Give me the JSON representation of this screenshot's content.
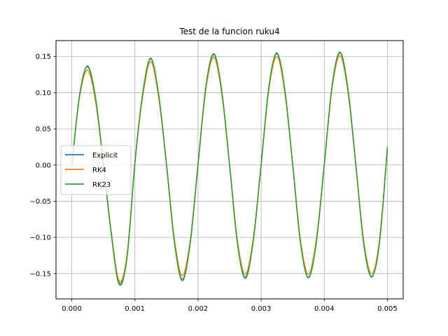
{
  "chart_data": {
    "type": "line",
    "title": "Test de la funcion ruku4",
    "xlabel": "",
    "ylabel": "",
    "xlim": [
      -0.00025,
      0.00525
    ],
    "ylim": [
      -0.185,
      0.172
    ],
    "x_ticks": [
      "0.000",
      "0.001",
      "0.002",
      "0.003",
      "0.004",
      "0.005"
    ],
    "y_ticks": [
      "−0.15",
      "−0.10",
      "−0.05",
      "0.00",
      "0.05",
      "0.10",
      "0.15"
    ],
    "grid": true,
    "legend_position": "center-left",
    "x": [
      0,
      0.000125,
      0.00025,
      0.000375,
      0.0005,
      0.000625,
      0.00075,
      0.000875,
      0.001,
      0.001125,
      0.00125,
      0.001375,
      0.0015,
      0.001625,
      0.00175,
      0.001875,
      0.002,
      0.002125,
      0.00225,
      0.002375,
      0.0025,
      0.002625,
      0.00275,
      0.002875,
      0.003,
      0.003125,
      0.00325,
      0.003375,
      0.0035,
      0.003625,
      0.00375,
      0.003875,
      0.004,
      0.004125,
      0.00425,
      0.004375,
      0.0045,
      0.004625,
      0.00475,
      0.004875,
      0.005
    ],
    "series": [
      {
        "name": "Explicit",
        "color": "#1f77b4",
        "values": [
          0.0,
          0.097,
          0.136,
          0.093,
          0.002,
          -0.094,
          -0.163,
          -0.127,
          0.003,
          0.099,
          0.147,
          0.097,
          0.001,
          -0.105,
          -0.158,
          -0.108,
          0.001,
          0.108,
          0.153,
          0.102,
          0.0,
          -0.108,
          -0.155,
          -0.104,
          0.001,
          0.109,
          0.154,
          0.103,
          0.0,
          -0.108,
          -0.155,
          -0.105,
          0.001,
          0.11,
          0.155,
          0.104,
          0.0,
          -0.108,
          -0.154,
          -0.106,
          0.025
        ]
      },
      {
        "name": "RK4",
        "color": "#ff7f0e",
        "values": [
          0.0,
          0.095,
          0.131,
          0.089,
          0.002,
          -0.092,
          -0.16,
          -0.124,
          0.003,
          0.096,
          0.143,
          0.094,
          0.001,
          -0.102,
          -0.153,
          -0.105,
          0.001,
          0.105,
          0.149,
          0.099,
          0.0,
          -0.105,
          -0.151,
          -0.101,
          0.001,
          0.106,
          0.15,
          0.1,
          0.0,
          -0.105,
          -0.151,
          -0.102,
          0.001,
          0.107,
          0.151,
          0.101,
          0.0,
          -0.105,
          -0.15,
          -0.103,
          0.025
        ]
      },
      {
        "name": "RK23",
        "color": "#2ca02c",
        "values": [
          0.0,
          0.097,
          0.137,
          0.094,
          0.002,
          -0.095,
          -0.165,
          -0.128,
          0.003,
          0.1,
          0.148,
          0.098,
          0.001,
          -0.106,
          -0.16,
          -0.109,
          0.001,
          0.109,
          0.154,
          0.103,
          0.0,
          -0.109,
          -0.157,
          -0.105,
          0.001,
          0.11,
          0.155,
          0.104,
          0.0,
          -0.109,
          -0.156,
          -0.106,
          0.001,
          0.111,
          0.156,
          0.105,
          0.0,
          -0.109,
          -0.155,
          -0.107,
          0.025
        ]
      }
    ]
  }
}
